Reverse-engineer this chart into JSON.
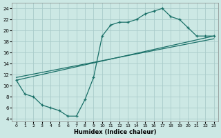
{
  "xlabel": "Humidex (Indice chaleur)",
  "bg_color": "#cce8e4",
  "grid_color": "#aaccca",
  "line_color": "#1a7068",
  "xlim": [
    -0.5,
    23.5
  ],
  "ylim": [
    3.5,
    25.0
  ],
  "yticks": [
    4,
    6,
    8,
    10,
    12,
    14,
    16,
    18,
    20,
    22,
    24
  ],
  "xticks": [
    0,
    1,
    2,
    3,
    4,
    5,
    6,
    7,
    8,
    9,
    10,
    11,
    12,
    13,
    14,
    15,
    16,
    17,
    18,
    19,
    20,
    21,
    22,
    23
  ],
  "curve_x": [
    0,
    1,
    2,
    3,
    4,
    5,
    6,
    7,
    8,
    9,
    10,
    11,
    12,
    13,
    14,
    15,
    16,
    17,
    18,
    19,
    20,
    21,
    22,
    23
  ],
  "curve_y": [
    11,
    8.5,
    8,
    6.5,
    6,
    5.5,
    4.5,
    4.5,
    7.5,
    11.5,
    19,
    21,
    21.5,
    21.5,
    22,
    23,
    23.5,
    24,
    22.5,
    22,
    20.5,
    19,
    19,
    19
  ],
  "trend1_x": [
    0,
    23
  ],
  "trend1_y": [
    11,
    19
  ],
  "trend2_x": [
    0,
    23
  ],
  "trend2_y": [
    11.5,
    18.5
  ]
}
